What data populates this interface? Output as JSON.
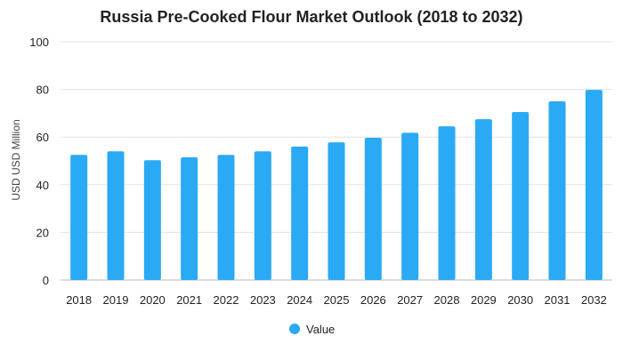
{
  "chart_data": {
    "type": "bar",
    "title": "Russia Pre-Cooked Flour Market Outlook (2018 to 2032)",
    "xlabel": "",
    "ylabel": "USD USD Million",
    "categories": [
      "2018",
      "2019",
      "2020",
      "2021",
      "2022",
      "2023",
      "2024",
      "2025",
      "2026",
      "2027",
      "2028",
      "2029",
      "2030",
      "2031",
      "2032"
    ],
    "series": [
      {
        "name": "Value",
        "color": "#2aa9f5",
        "values": [
          52.5,
          54,
          50.3,
          51.5,
          52.5,
          54,
          56,
          57.8,
          59.7,
          61.8,
          64.5,
          67.5,
          70.5,
          75,
          79.8
        ]
      }
    ],
    "ylim": [
      0,
      100
    ],
    "yticks": [
      "0",
      "20",
      "40",
      "60",
      "80",
      "100"
    ],
    "grid": true,
    "legend_position": "bottom"
  }
}
